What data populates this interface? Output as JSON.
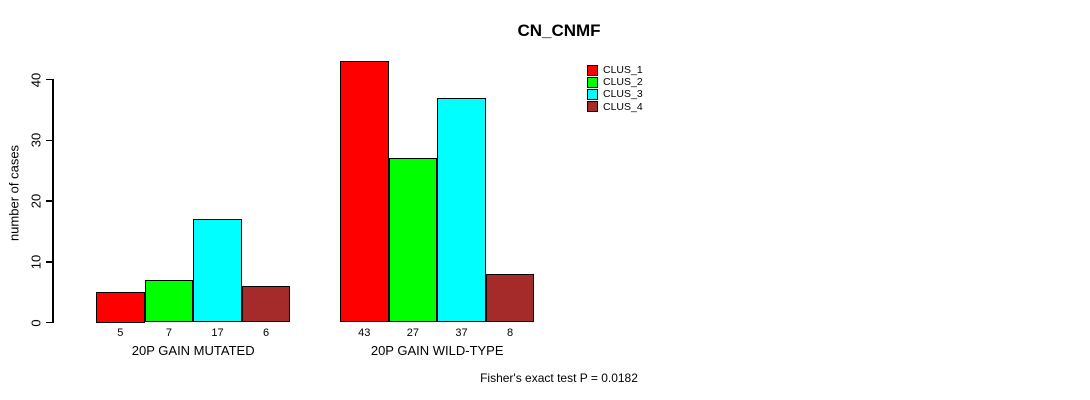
{
  "chart_data": {
    "type": "bar",
    "title": "CN_CNMF",
    "ylabel": "number of cases",
    "xlabel": "",
    "categories": [
      "20P GAIN MUTATED",
      "20P GAIN WILD-TYPE"
    ],
    "series": [
      {
        "name": "CLUS_1",
        "color": "#FF0000",
        "values": [
          5,
          43
        ]
      },
      {
        "name": "CLUS_2",
        "color": "#00FF00",
        "values": [
          7,
          27
        ]
      },
      {
        "name": "CLUS_3",
        "color": "#00FFFF",
        "values": [
          17,
          37
        ]
      },
      {
        "name": "CLUS_4",
        "color": "#A52A2A",
        "values": [
          6,
          8
        ]
      }
    ],
    "yticks": [
      0,
      10,
      20,
      30,
      40
    ],
    "ylim": [
      0,
      43
    ],
    "grid": false,
    "legend_position": "top-right",
    "bar_borders": "#000000",
    "annotation": "Fisher's exact test P = 0.0182"
  },
  "colors": {
    "background": "#FFFFFF",
    "axis": "#000000",
    "text": "#000000"
  }
}
